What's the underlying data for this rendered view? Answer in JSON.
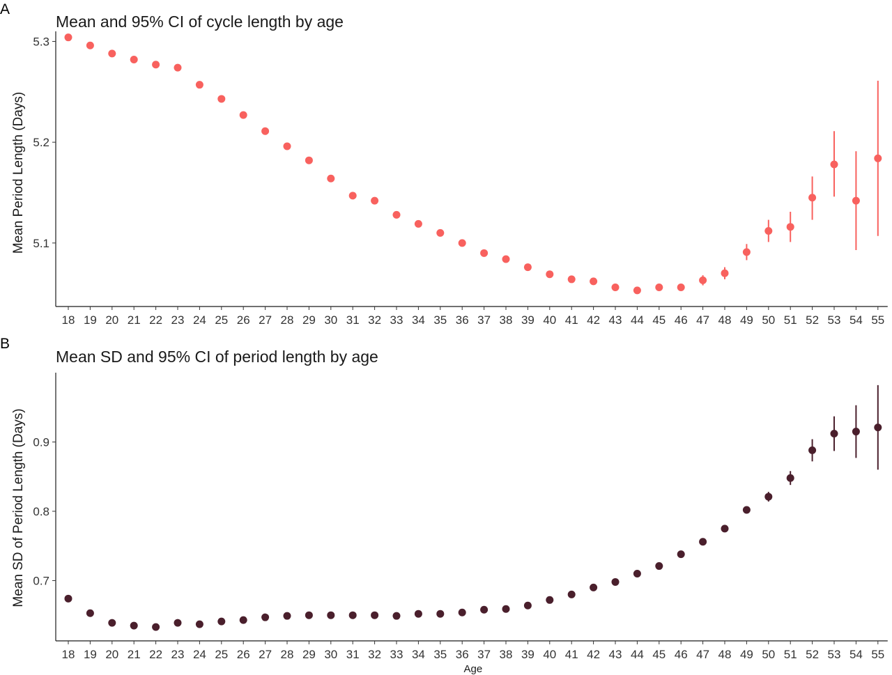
{
  "chart_data": [
    {
      "panel": "A",
      "type": "scatter",
      "title": "Mean and 95% CI of cycle length by age",
      "xlabel": "",
      "ylabel": "Mean Period Length (Days)",
      "color": "#F8615E",
      "ylim": [
        5.037,
        5.31
      ],
      "yticks": [
        5.1,
        5.2,
        5.3
      ],
      "x": [
        18,
        19,
        20,
        21,
        22,
        23,
        24,
        25,
        26,
        27,
        28,
        29,
        30,
        31,
        32,
        33,
        34,
        35,
        36,
        37,
        38,
        39,
        40,
        41,
        42,
        43,
        44,
        45,
        46,
        47,
        48,
        49,
        50,
        51,
        52,
        53,
        54,
        55
      ],
      "y": [
        5.304,
        5.296,
        5.288,
        5.282,
        5.277,
        5.274,
        5.257,
        5.243,
        5.227,
        5.211,
        5.196,
        5.182,
        5.164,
        5.147,
        5.142,
        5.128,
        5.119,
        5.11,
        5.1,
        5.09,
        5.084,
        5.076,
        5.069,
        5.064,
        5.062,
        5.056,
        5.053,
        5.056,
        5.056,
        5.063,
        5.07,
        5.091,
        5.112,
        5.116,
        5.145,
        5.178,
        5.142,
        5.184
      ],
      "ci_low": [
        5.302,
        5.294,
        5.286,
        5.28,
        5.275,
        5.272,
        5.255,
        5.241,
        5.225,
        5.209,
        5.194,
        5.18,
        5.162,
        5.145,
        5.14,
        5.126,
        5.117,
        5.108,
        5.098,
        5.088,
        5.082,
        5.074,
        5.067,
        5.062,
        5.06,
        5.054,
        5.051,
        5.053,
        5.053,
        5.058,
        5.064,
        5.083,
        5.101,
        5.101,
        5.123,
        5.146,
        5.093,
        5.107
      ],
      "ci_high": [
        5.306,
        5.298,
        5.29,
        5.284,
        5.279,
        5.276,
        5.259,
        5.245,
        5.229,
        5.213,
        5.198,
        5.184,
        5.166,
        5.149,
        5.144,
        5.13,
        5.121,
        5.112,
        5.102,
        5.092,
        5.086,
        5.078,
        5.071,
        5.066,
        5.064,
        5.058,
        5.055,
        5.059,
        5.059,
        5.068,
        5.076,
        5.099,
        5.123,
        5.131,
        5.166,
        5.211,
        5.191,
        5.261
      ]
    },
    {
      "panel": "B",
      "type": "scatter",
      "title": "Mean SD and 95% CI of period length by age",
      "xlabel": "Age",
      "ylabel": "Mean SD of Period Length (Days)",
      "color": "#4A1F2C",
      "ylim": [
        0.613,
        1.0
      ],
      "yticks": [
        0.7,
        0.8,
        0.9
      ],
      "x": [
        18,
        19,
        20,
        21,
        22,
        23,
        24,
        25,
        26,
        27,
        28,
        29,
        30,
        31,
        32,
        33,
        34,
        35,
        36,
        37,
        38,
        39,
        40,
        41,
        42,
        43,
        44,
        45,
        46,
        47,
        48,
        49,
        50,
        51,
        52,
        53,
        54,
        55
      ],
      "y": [
        0.674,
        0.653,
        0.639,
        0.635,
        0.633,
        0.639,
        0.637,
        0.641,
        0.643,
        0.647,
        0.649,
        0.65,
        0.65,
        0.65,
        0.65,
        0.649,
        0.652,
        0.652,
        0.654,
        0.658,
        0.659,
        0.664,
        0.672,
        0.68,
        0.69,
        0.698,
        0.71,
        0.721,
        0.738,
        0.756,
        0.775,
        0.802,
        0.821,
        0.848,
        0.888,
        0.912,
        0.915,
        0.921
      ],
      "ci_low": [
        0.672,
        0.651,
        0.637,
        0.633,
        0.631,
        0.637,
        0.635,
        0.639,
        0.641,
        0.645,
        0.647,
        0.648,
        0.648,
        0.648,
        0.648,
        0.647,
        0.65,
        0.65,
        0.652,
        0.656,
        0.657,
        0.662,
        0.67,
        0.678,
        0.688,
        0.696,
        0.708,
        0.719,
        0.736,
        0.754,
        0.773,
        0.799,
        0.814,
        0.838,
        0.872,
        0.887,
        0.877,
        0.86
      ],
      "ci_high": [
        0.676,
        0.655,
        0.641,
        0.637,
        0.635,
        0.641,
        0.639,
        0.643,
        0.645,
        0.649,
        0.651,
        0.652,
        0.652,
        0.652,
        0.652,
        0.651,
        0.654,
        0.654,
        0.656,
        0.66,
        0.661,
        0.666,
        0.674,
        0.682,
        0.692,
        0.7,
        0.712,
        0.723,
        0.74,
        0.758,
        0.777,
        0.805,
        0.828,
        0.858,
        0.904,
        0.937,
        0.953,
        0.982
      ]
    }
  ]
}
